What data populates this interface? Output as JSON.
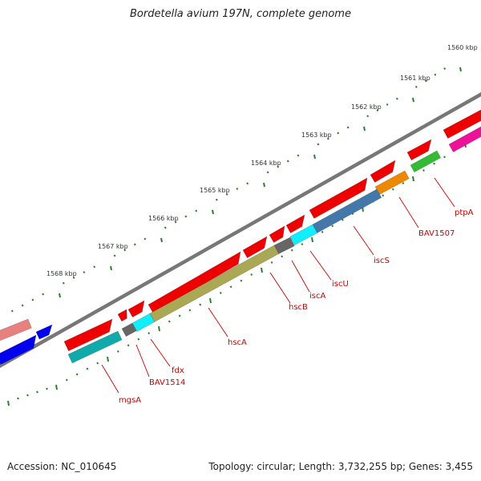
{
  "title": "Bordetella avium 197N, complete genome",
  "accession_text": "Accession: NC_010645",
  "summary_text": "Topology: circular; Length: 3,732,255 bp; Genes: 3,455",
  "axis": {
    "tick_labels": [
      "1560 kbp",
      "1561 kbp",
      "1562 kbp",
      "1563 kbp",
      "1564 kbp",
      "1565 kbp",
      "1566 kbp",
      "1567 kbp",
      "1568 kbp"
    ]
  },
  "gene_labels": [
    "ptpA",
    "BAV1507",
    "iscS",
    "iscU",
    "iscA",
    "hscB",
    "hscA",
    "fdx",
    "BAV1514",
    "mgsA"
  ],
  "colors": {
    "backbone": "#777777",
    "tick": "#2e7d32",
    "label": "#cc0000",
    "red_gene": "#ee0000",
    "blue_gene": "#0000ee",
    "pink_gene": "#e88080",
    "magenta_gene": "#ee1199",
    "green_gene": "#33bb33",
    "orange_gene": "#ee8800",
    "steelblue_gene": "#4477aa",
    "cyan_gene": "#11eeff",
    "gray_gene": "#666666",
    "olive_gene": "#aaa855",
    "teal_gene": "#11aaaa"
  }
}
